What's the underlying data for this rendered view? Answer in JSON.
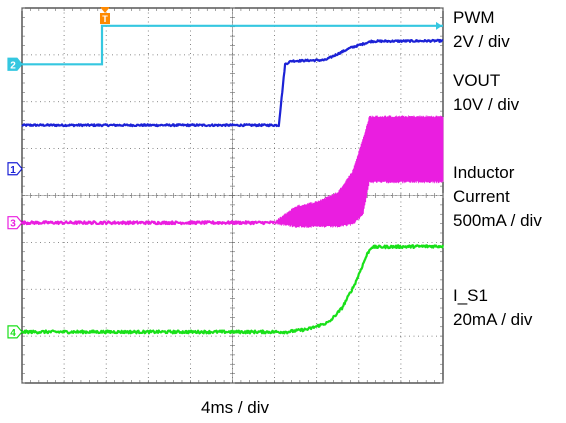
{
  "chart_data": {
    "type": "line",
    "title": "",
    "xlabel": "4ms / div",
    "ylabel": "",
    "divisions": {
      "x": 10,
      "y": 8
    },
    "xlim_div": [
      0,
      10
    ],
    "ylim_div": [
      0,
      8
    ],
    "grid": true,
    "trigger_marker": "T",
    "series": [
      {
        "label": "2",
        "color": "#35c7e0",
        "unit_text": "2V / div",
        "channel_name": "PWM",
        "noise": 0.0,
        "points": [
          [
            0,
            6.8
          ],
          [
            1.9,
            6.8
          ],
          [
            1.9,
            7.62
          ],
          [
            10,
            7.62
          ]
        ]
      },
      {
        "label": "",
        "color": "#1c22d6",
        "unit_text": "10V / div",
        "channel_name": "VOUT",
        "noise": 0.02,
        "points": [
          [
            0,
            5.5
          ],
          [
            6.1,
            5.5
          ],
          [
            6.25,
            6.8
          ],
          [
            6.4,
            6.87
          ],
          [
            7.2,
            6.89
          ],
          [
            7.8,
            7.15
          ],
          [
            8.3,
            7.29
          ],
          [
            10,
            7.3
          ]
        ]
      },
      {
        "label": "3",
        "color": "#ea1ee0",
        "unit_text": "500mA / div",
        "channel_name": "Inductor Current",
        "noise": 0.03,
        "points": [
          [
            0,
            3.42
          ],
          [
            6.0,
            3.42
          ],
          [
            10,
            3.42
          ]
        ],
        "ripple": {
          "x": [
            6.0,
            6.5,
            7.0,
            7.5,
            7.85,
            8.1,
            8.25,
            10
          ],
          "hi": [
            3.42,
            3.75,
            3.85,
            4.05,
            4.5,
            5.2,
            5.67,
            5.67
          ],
          "lo": [
            3.42,
            3.35,
            3.35,
            3.35,
            3.4,
            3.6,
            4.3,
            4.3
          ]
        }
      },
      {
        "label": "4",
        "color": "#19e019",
        "unit_text": "20mA / div",
        "channel_name": "I_S1",
        "noise": 0.03,
        "points": [
          [
            0,
            1.09
          ],
          [
            6.3,
            1.09
          ],
          [
            6.8,
            1.15
          ],
          [
            7.3,
            1.3
          ],
          [
            7.6,
            1.6
          ],
          [
            7.9,
            2.1
          ],
          [
            8.2,
            2.75
          ],
          [
            8.3,
            2.9
          ],
          [
            10,
            2.92
          ]
        ]
      }
    ],
    "ground_markers": [
      {
        "label": "2",
        "color": "#35c7e0",
        "level": 6.8,
        "filled": true
      },
      {
        "label": "1",
        "color": "#1c22d6",
        "level": 4.57,
        "filled": false
      },
      {
        "label": "3",
        "color": "#ea1ee0",
        "level": 3.42,
        "filled": false
      },
      {
        "label": "4",
        "color": "#19e019",
        "level": 1.09,
        "filled": false
      }
    ]
  },
  "labels": {
    "pwm_name": "PWM",
    "pwm_scale": "2V / div",
    "vout_name": "VOUT",
    "vout_scale": "10V / div",
    "il_name_1": "Inductor",
    "il_name_2": "Current",
    "il_scale": "500mA / div",
    "is1_name": "I_S1",
    "is1_scale": "20mA / div",
    "timebase": "4ms / div"
  }
}
